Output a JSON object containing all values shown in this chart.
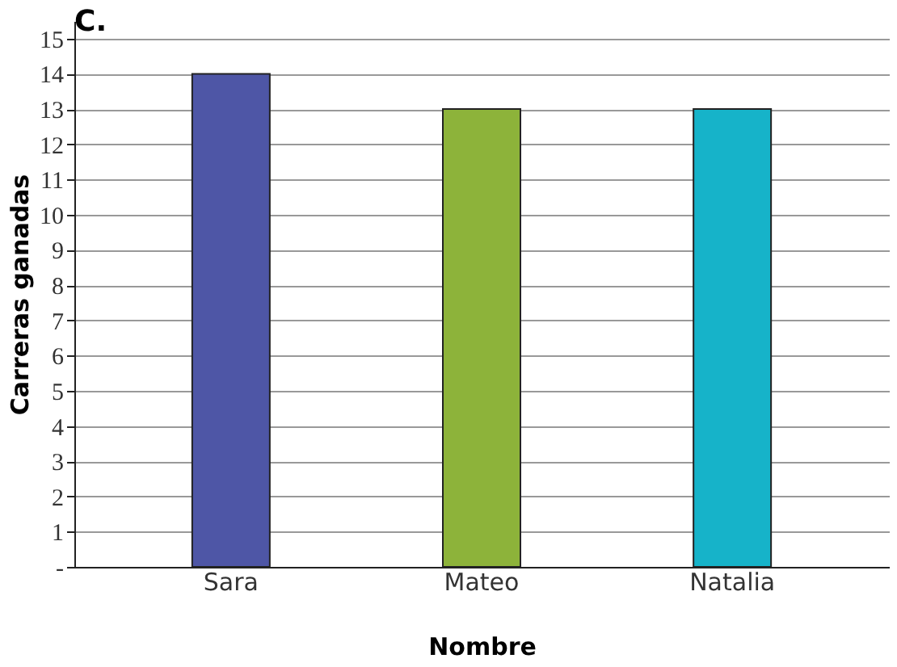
{
  "chart_data": {
    "type": "bar",
    "title": "C.",
    "categories": [
      "Sara",
      "Mateo",
      "Natalia"
    ],
    "values": [
      14,
      13,
      13
    ],
    "colors": [
      "#4e56a6",
      "#8db33a",
      "#16b3c9"
    ],
    "xlabel": "Nombre",
    "ylabel": "Carreras ganadas",
    "ylim": [
      0,
      15.5
    ],
    "yticks": [
      {
        "value": 0,
        "label": "-"
      },
      1,
      2,
      3,
      4,
      5,
      6,
      7,
      8,
      9,
      10,
      11,
      12,
      13,
      14,
      15
    ],
    "grid": "y"
  }
}
